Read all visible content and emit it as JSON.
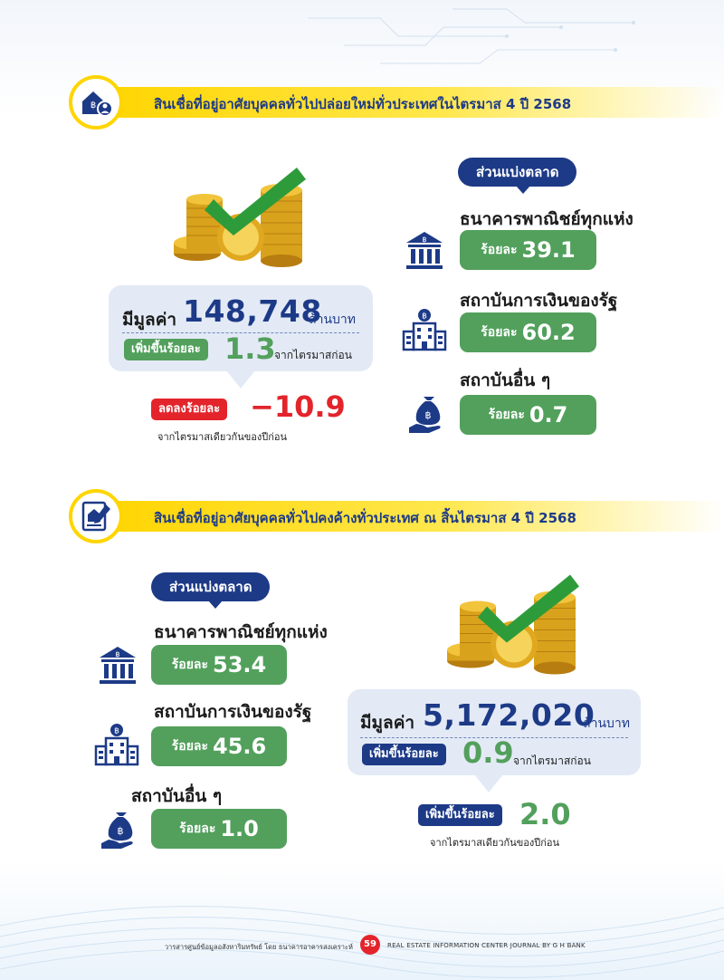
{
  "section1": {
    "title": "สินเชื่อที่อยู่อาศัยบุคคลทั่วไปปล่อยใหม่ทั่วประเทศในไตรมาส 4 ปี  2568",
    "value_label": "มีมูลค่า",
    "value": "148,748",
    "value_unit": "ล้านบาท",
    "qoq_chip": "เพิ่มขึ้นร้อยละ",
    "qoq_value": "1.3",
    "qoq_text": "จากไตรมาสก่อน",
    "yoy_chip": "ลดลงร้อยละ",
    "yoy_value": "−10.9",
    "yoy_text": "จากไตรมาสเดียวกันของปีก่อน",
    "share_title": "ส่วนแบ่งตลาด",
    "institutions": [
      {
        "name": "ธนาคารพาณิชย์ทุกแห่ง",
        "label": "ร้อยละ",
        "value": "39.1",
        "icon": "bank-icon"
      },
      {
        "name": "สถาบันการเงินของรัฐ",
        "label": "ร้อยละ",
        "value": "60.2",
        "icon": "government-building-icon"
      },
      {
        "name": "สถาบันอื่น ๆ",
        "label": "ร้อยละ",
        "value": "0.7",
        "icon": "money-bag-hand-icon"
      }
    ]
  },
  "section2": {
    "title": "สินเชื่อที่อยู่อาศัยบุคคลทั่วไปคงค้างทั่วประเทศ ณ สิ้นไตรมาส 4 ปี 2568",
    "value_label": "มีมูลค่า",
    "value": "5,172,020",
    "value_unit": "ล้านบาท",
    "qoq_chip": "เพิ่มขึ้นร้อยละ",
    "qoq_value": "0.9",
    "qoq_text": "จากไตรมาสก่อน",
    "yoy_chip": "เพิ่มขึ้นร้อยละ",
    "yoy_value": "2.0",
    "yoy_text": "จากไตรมาสเดียวกันของปีก่อน",
    "share_title": "ส่วนแบ่งตลาด",
    "institutions": [
      {
        "name": "ธนาคารพาณิชย์ทุกแห่ง",
        "label": "ร้อยละ",
        "value": "53.4",
        "icon": "bank-icon"
      },
      {
        "name": "สถาบันการเงินของรัฐ",
        "label": "ร้อยละ",
        "value": "45.6",
        "icon": "government-building-icon"
      },
      {
        "name": "สถาบันอื่น ๆ",
        "label": "ร้อยละ",
        "value": "1.0",
        "icon": "money-bag-hand-icon"
      }
    ]
  },
  "footer": {
    "left": "วารสารศูนย์ข้อมูลอสังหาริมทรัพย์ โดย ธนาคารอาคารสงเคราะห์",
    "page": "59",
    "right": "REAL ESTATE INFORMATION CENTER JOURNAL BY G H BANK"
  },
  "colors": {
    "navy": "#1d3a87",
    "green": "#52a05c",
    "red": "#e3242b",
    "yellow": "#ffd500"
  }
}
